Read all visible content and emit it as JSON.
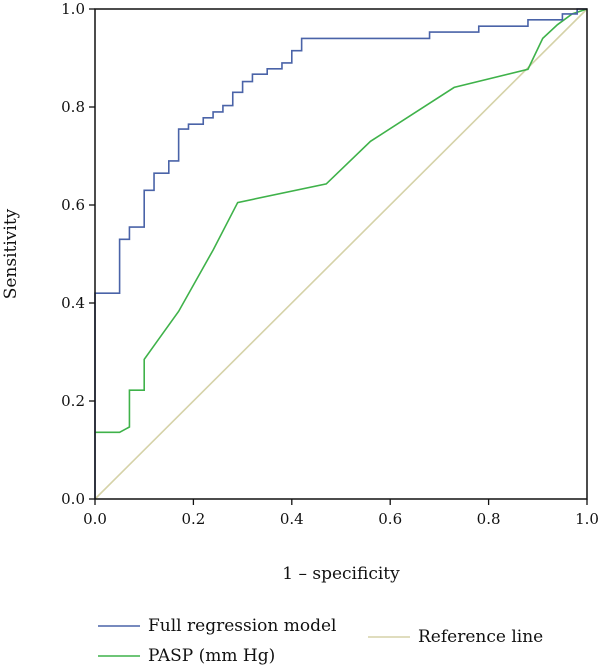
{
  "chart_data": {
    "type": "line",
    "xlabel": "1 – specificity",
    "ylabel": "Sensitivity",
    "xlim": [
      0,
      1
    ],
    "ylim": [
      0,
      1
    ],
    "x_ticks": [
      "0.0",
      "0.2",
      "0.4",
      "0.6",
      "0.8",
      "1.0"
    ],
    "y_ticks": [
      "0.0",
      "0.2",
      "0.4",
      "0.6",
      "0.8",
      "1.0"
    ],
    "grid": false,
    "legend_position": "bottom",
    "series": [
      {
        "name": "Full regression model",
        "color": "#4a63a8",
        "step": true,
        "points": [
          [
            0,
            0
          ],
          [
            0,
            0.42
          ],
          [
            0.05,
            0.42
          ],
          [
            0.05,
            0.53
          ],
          [
            0.07,
            0.53
          ],
          [
            0.07,
            0.555
          ],
          [
            0.1,
            0.555
          ],
          [
            0.1,
            0.63
          ],
          [
            0.12,
            0.63
          ],
          [
            0.12,
            0.665
          ],
          [
            0.15,
            0.665
          ],
          [
            0.15,
            0.69
          ],
          [
            0.17,
            0.69
          ],
          [
            0.17,
            0.755
          ],
          [
            0.19,
            0.755
          ],
          [
            0.19,
            0.765
          ],
          [
            0.22,
            0.765
          ],
          [
            0.22,
            0.778
          ],
          [
            0.24,
            0.778
          ],
          [
            0.24,
            0.79
          ],
          [
            0.26,
            0.79
          ],
          [
            0.26,
            0.803
          ],
          [
            0.28,
            0.803
          ],
          [
            0.28,
            0.83
          ],
          [
            0.3,
            0.83
          ],
          [
            0.3,
            0.852
          ],
          [
            0.32,
            0.852
          ],
          [
            0.32,
            0.867
          ],
          [
            0.35,
            0.867
          ],
          [
            0.35,
            0.878
          ],
          [
            0.38,
            0.878
          ],
          [
            0.38,
            0.89
          ],
          [
            0.4,
            0.89
          ],
          [
            0.4,
            0.915
          ],
          [
            0.42,
            0.915
          ],
          [
            0.42,
            0.94
          ],
          [
            0.68,
            0.94
          ],
          [
            0.68,
            0.953
          ],
          [
            0.78,
            0.953
          ],
          [
            0.78,
            0.965
          ],
          [
            0.88,
            0.965
          ],
          [
            0.88,
            0.978
          ],
          [
            0.95,
            0.978
          ],
          [
            0.95,
            0.99
          ],
          [
            0.98,
            0.99
          ],
          [
            0.98,
            1.0
          ],
          [
            1.0,
            1.0
          ]
        ]
      },
      {
        "name": "PASP (mm Hg)",
        "color": "#3fb24a",
        "step": false,
        "points": [
          [
            0,
            0.136
          ],
          [
            0.05,
            0.136
          ],
          [
            0.07,
            0.147
          ],
          [
            0.07,
            0.222
          ],
          [
            0.1,
            0.222
          ],
          [
            0.1,
            0.285
          ],
          [
            0.125,
            0.32
          ],
          [
            0.17,
            0.383
          ],
          [
            0.24,
            0.508
          ],
          [
            0.29,
            0.605
          ],
          [
            0.47,
            0.643
          ],
          [
            0.56,
            0.73
          ],
          [
            0.73,
            0.84
          ],
          [
            0.88,
            0.877
          ],
          [
            0.91,
            0.94
          ],
          [
            0.94,
            0.968
          ],
          [
            0.97,
            0.99
          ],
          [
            1.0,
            1.0
          ]
        ]
      },
      {
        "name": "Reference line",
        "color": "#d5d2a8",
        "step": false,
        "points": [
          [
            0,
            0
          ],
          [
            1,
            1
          ]
        ]
      }
    ]
  }
}
